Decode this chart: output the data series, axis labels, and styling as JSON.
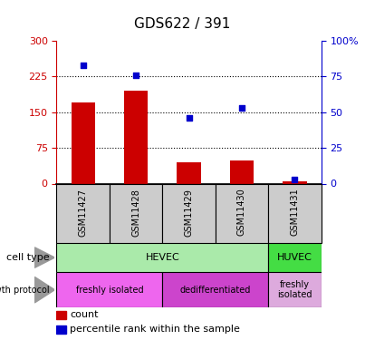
{
  "title": "GDS622 / 391",
  "samples": [
    "GSM11427",
    "GSM11428",
    "GSM11429",
    "GSM11430",
    "GSM11431"
  ],
  "counts": [
    170,
    195,
    45,
    48,
    5
  ],
  "percentile_ranks": [
    83,
    76,
    46,
    53,
    3
  ],
  "left_yaxis": {
    "min": 0,
    "max": 300,
    "ticks": [
      0,
      75,
      150,
      225,
      300
    ],
    "color": "#cc0000"
  },
  "right_yaxis": {
    "min": 0,
    "max": 100,
    "ticks": [
      0,
      25,
      50,
      75,
      100
    ],
    "color": "#0000cc"
  },
  "bar_color": "#cc0000",
  "dot_color": "#0000cc",
  "grid_lines": [
    75,
    150,
    225
  ],
  "cell_type_row": {
    "label": "cell type",
    "groups": [
      {
        "text": "HEVEC",
        "span": [
          0,
          4
        ],
        "color": "#aaeaaa"
      },
      {
        "text": "HUVEC",
        "span": [
          4,
          5
        ],
        "color": "#44dd44"
      }
    ]
  },
  "growth_protocol_row": {
    "label": "growth protocol",
    "groups": [
      {
        "text": "freshly isolated",
        "span": [
          0,
          2
        ],
        "color": "#ee66ee"
      },
      {
        "text": "dedifferentiated",
        "span": [
          2,
          4
        ],
        "color": "#cc44cc"
      },
      {
        "text": "freshly\nisolated",
        "span": [
          4,
          5
        ],
        "color": "#ddaadd"
      }
    ]
  },
  "legend": [
    {
      "color": "#cc0000",
      "label": "count"
    },
    {
      "color": "#0000cc",
      "label": "percentile rank within the sample"
    }
  ],
  "title_color": "#000000",
  "background_color": "#ffffff",
  "sample_bg_color": "#cccccc"
}
